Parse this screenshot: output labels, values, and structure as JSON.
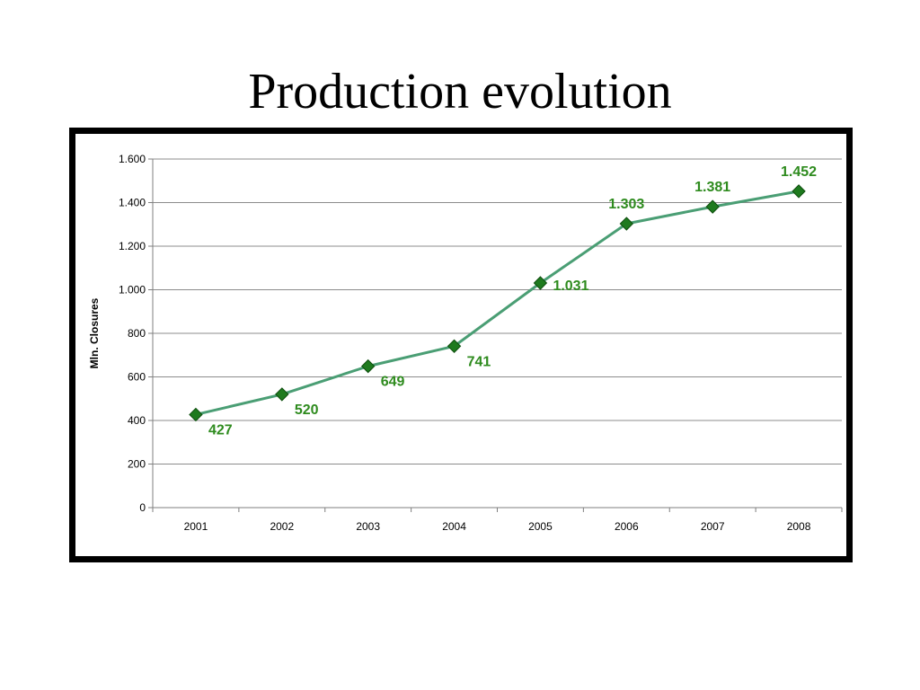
{
  "slide": {
    "title": "Production evolution"
  },
  "colors": {
    "line": "#4a9e74",
    "marker_fill": "#1e7a1e",
    "marker_stroke": "#0d4d0d",
    "label": "#2e8b1e",
    "grid": "#8c8c8c",
    "axis": "#7f7f7f"
  },
  "chart_data": {
    "type": "line",
    "title": "",
    "xlabel": "",
    "ylabel": "Mln. Closures",
    "categories": [
      "2001",
      "2002",
      "2003",
      "2004",
      "2005",
      "2006",
      "2007",
      "2008"
    ],
    "series": [
      {
        "values": [
          427,
          520,
          649,
          741,
          1031,
          1303,
          1381,
          1452
        ],
        "data_labels": [
          "427",
          "520",
          "649",
          "741",
          "1.031",
          "1.303",
          "1.381",
          "1.452"
        ]
      }
    ],
    "ylim": [
      0,
      1600
    ],
    "yticks": [
      0,
      200,
      400,
      600,
      800,
      1000,
      1200,
      1400,
      1600
    ],
    "ytick_labels": [
      "0",
      "200",
      "400",
      "600",
      "800",
      "1.000",
      "1.200",
      "1.400",
      "1.600"
    ],
    "grid": true,
    "legend": "none",
    "marker": "diamond"
  }
}
